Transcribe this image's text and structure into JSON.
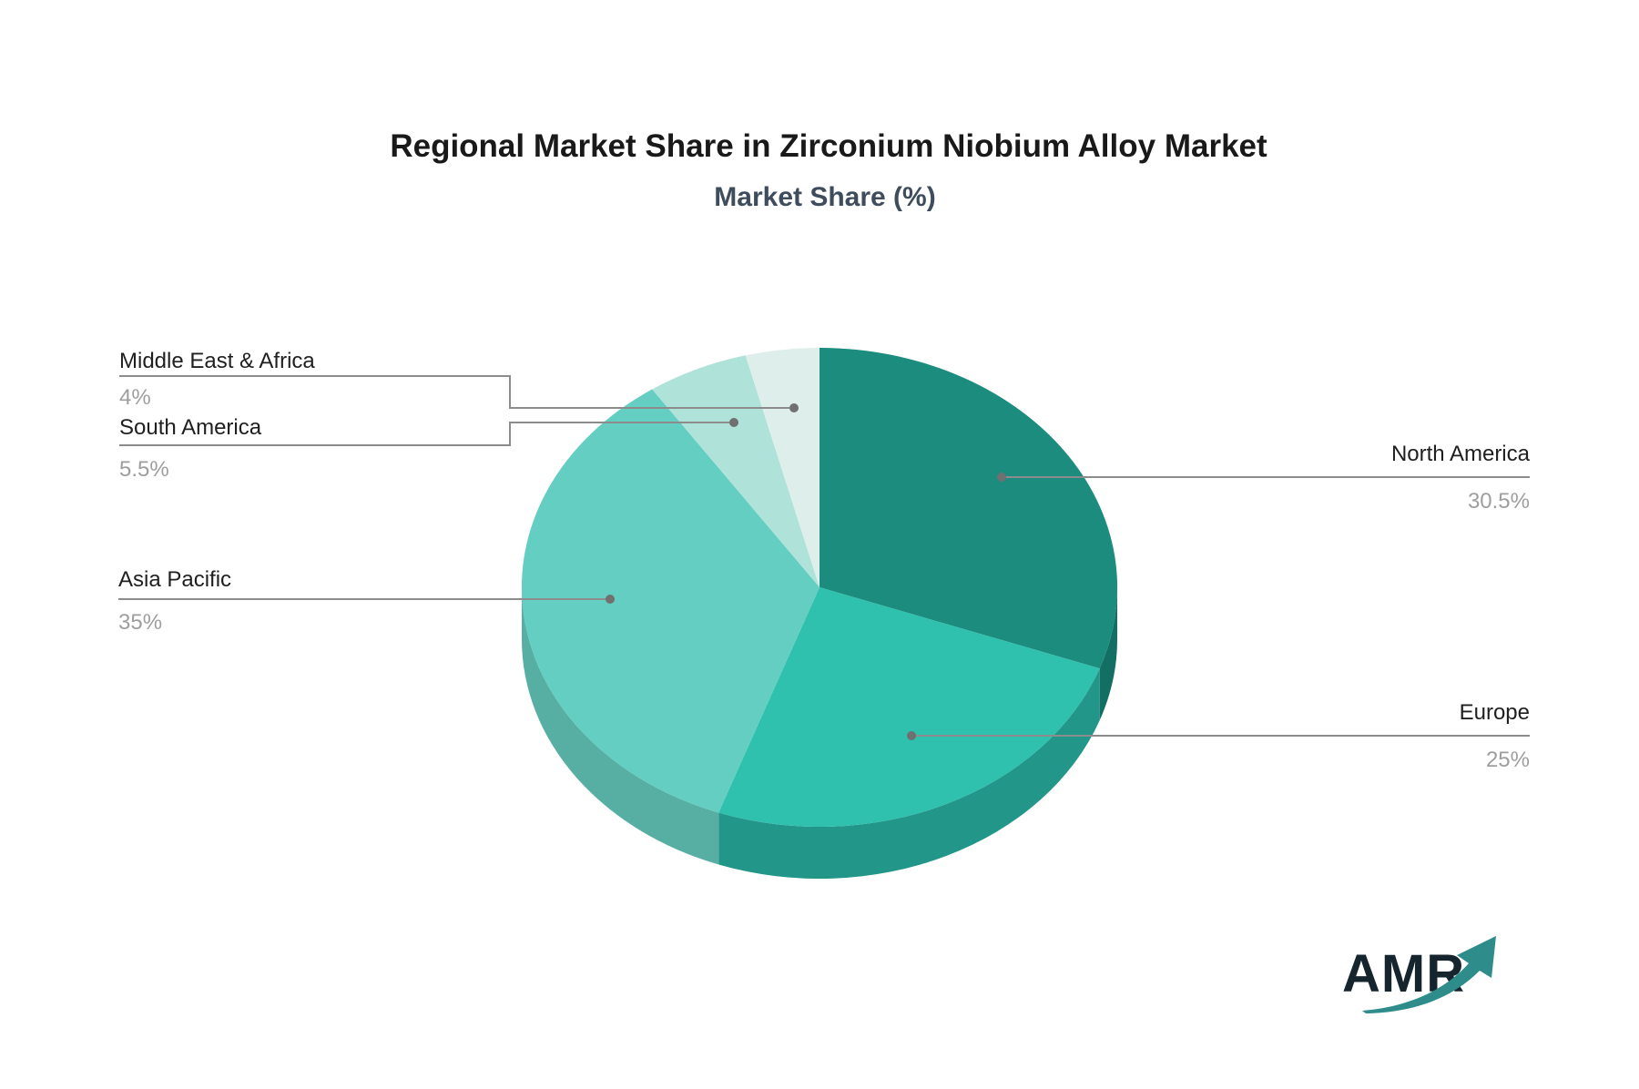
{
  "title": "Regional Market Share in Zirconium Niobium Alloy Market",
  "subtitle": "Market Share (%)",
  "logo": {
    "text": "AMR"
  },
  "colors": {
    "background": "#ffffff",
    "title": "#191919",
    "subtitle": "#3e4c5c",
    "label_text": "#1f1f1f",
    "value_text": "#9e9e9e",
    "leader_line": "#8c8c8c",
    "leader_dot": "#707070",
    "logo_text": "#16242e",
    "logo_arrow": "#2e8c8b"
  },
  "chart_data": {
    "type": "pie",
    "title": "Regional Market Share in Zirconium Niobium Alloy Market",
    "subtitle": "Market Share (%)",
    "unit": "percent",
    "effect_3d": true,
    "start_angle_deg": 0,
    "direction": "clockwise",
    "legend_position": "none",
    "slices": [
      {
        "label": "North America",
        "value": 30.5,
        "display_value": "30.5%",
        "color": "#1b8c7e",
        "side_color": "#136f64",
        "label_side": "right"
      },
      {
        "label": "Europe",
        "value": 25,
        "display_value": "25%",
        "color": "#2fc0ae",
        "side_color": "#23968a",
        "label_side": "right"
      },
      {
        "label": "Asia Pacific",
        "value": 35,
        "display_value": "35%",
        "color": "#63cec1",
        "side_color": "#57afa3",
        "label_side": "left"
      },
      {
        "label": "South America",
        "value": 5.5,
        "display_value": "5.5%",
        "color": "#afe2d9",
        "side_color": "#8fc9bf",
        "label_side": "left"
      },
      {
        "label": "Middle East & Africa",
        "value": 4,
        "display_value": "4%",
        "color": "#deefeb",
        "side_color": "#b8d8d2",
        "label_side": "left"
      }
    ]
  }
}
